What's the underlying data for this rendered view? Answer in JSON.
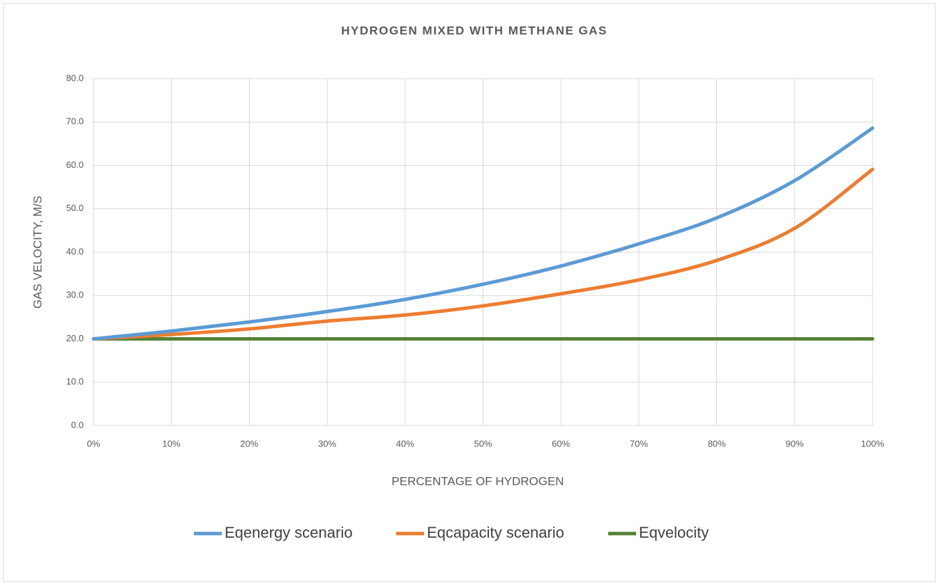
{
  "chart_data": {
    "type": "line",
    "title": "HYDROGEN MIXED WITH METHANE GAS",
    "x_label": "PERCENTAGE OF HYDROGEN",
    "y_label": "GAS VELOCITY, M/S",
    "x": [
      0,
      10,
      20,
      30,
      40,
      50,
      60,
      70,
      80,
      90,
      100
    ],
    "series": [
      {
        "name": "Eqenergy scenario",
        "color": "#5b9bd5",
        "values": [
          20,
          21.8,
          23.9,
          26.3,
          29.1,
          32.6,
          36.8,
          41.9,
          47.9,
          56.5,
          68.6
        ]
      },
      {
        "name": "Eqcapacity scenario",
        "color": "#ed7d31",
        "values": [
          20,
          21.0,
          22.3,
          24.1,
          25.5,
          27.6,
          30.4,
          33.6,
          38.1,
          45.5,
          59.1
        ]
      },
      {
        "name": "Eqvelocity",
        "color": "#548235",
        "values": [
          20,
          20,
          20,
          20,
          20,
          20,
          20,
          20,
          20,
          20,
          20
        ]
      }
    ],
    "xlim": [
      0,
      100
    ],
    "xticks": [
      {
        "value": 0,
        "label": "0%"
      },
      {
        "value": 10,
        "label": "10%"
      },
      {
        "value": 20,
        "label": "20%"
      },
      {
        "value": 30,
        "label": "30%"
      },
      {
        "value": 40,
        "label": "40%"
      },
      {
        "value": 50,
        "label": "50%"
      },
      {
        "value": 60,
        "label": "60%"
      },
      {
        "value": 70,
        "label": "70%"
      },
      {
        "value": 80,
        "label": "80%"
      },
      {
        "value": 90,
        "label": "90%"
      },
      {
        "value": 100,
        "label": "100%"
      }
    ],
    "ylim": [
      0,
      80
    ],
    "yticks": [
      {
        "value": 0,
        "label": "0.0"
      },
      {
        "value": 10,
        "label": "10.0"
      },
      {
        "value": 20,
        "label": "20.0"
      },
      {
        "value": 30,
        "label": "30.0"
      },
      {
        "value": 40,
        "label": "40.0"
      },
      {
        "value": 50,
        "label": "50.0"
      },
      {
        "value": 60,
        "label": "60.0"
      },
      {
        "value": 70,
        "label": "70.0"
      },
      {
        "value": 80,
        "label": "80.0"
      }
    ],
    "grid": true,
    "legend": "bottom"
  }
}
